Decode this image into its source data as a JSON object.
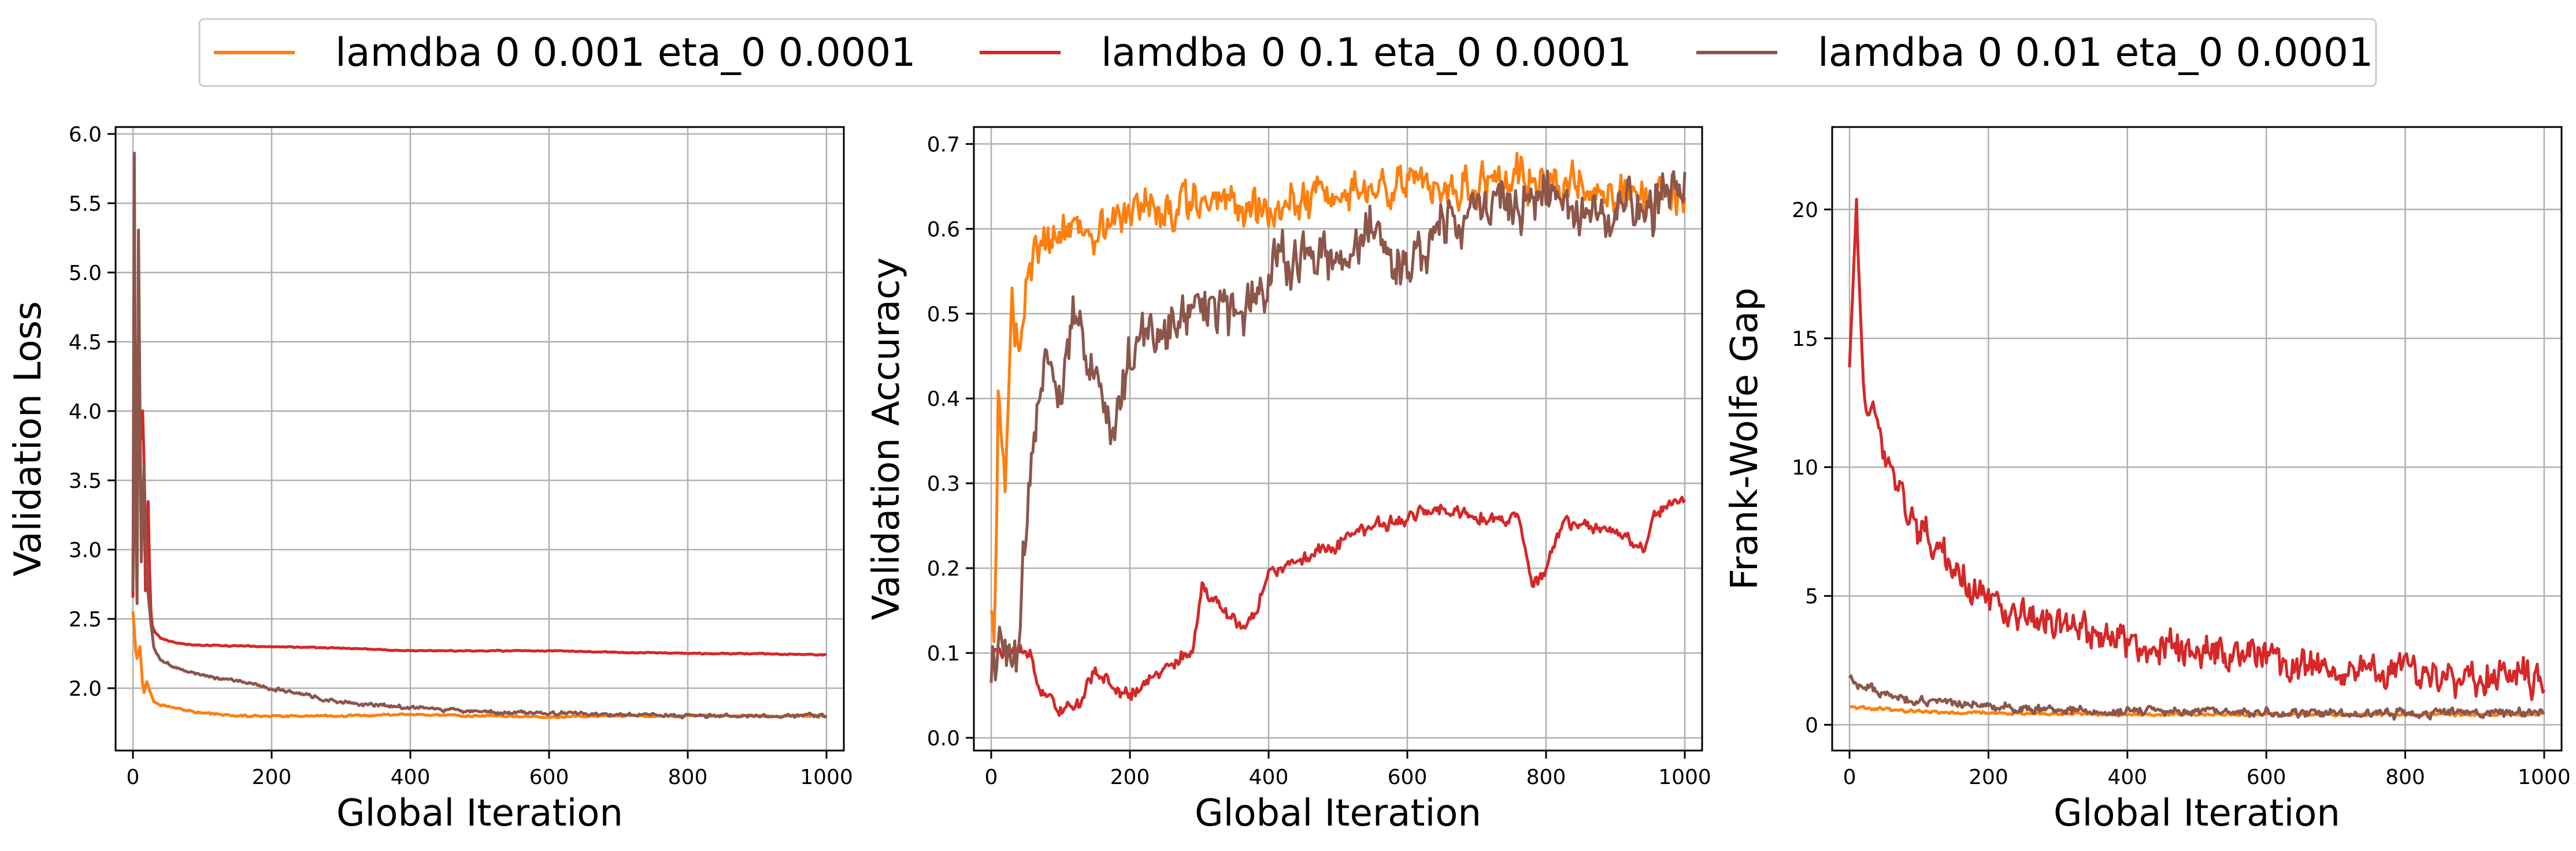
{
  "legend": {
    "entries": [
      {
        "label": "lamdba 0 0.001 eta_0 0.0001",
        "color": "#ff7f0e"
      },
      {
        "label": "lamdba 0 0.1 eta_0 0.0001",
        "color": "#d62728"
      },
      {
        "label": "lamdba 0 0.01 eta_0 0.0001",
        "color": "#8c564b"
      }
    ],
    "placement": "top-center"
  },
  "chart_data": [
    {
      "type": "line",
      "xlabel": "Global Iteration",
      "ylabel": "Validation Loss",
      "xlim": [
        -25,
        1025
      ],
      "ylim": [
        1.55,
        6.05
      ],
      "xticks": [
        0,
        200,
        400,
        600,
        800,
        1000
      ],
      "yticks": [
        2.0,
        2.5,
        3.0,
        3.5,
        4.0,
        4.5,
        5.0,
        5.5,
        6.0
      ],
      "ytick_labels": [
        "2.0",
        "2.5",
        "3.0",
        "3.5",
        "4.0",
        "4.5",
        "5.0",
        "5.5",
        "6.0"
      ],
      "grid": true,
      "series": [
        {
          "name": "lamdba 0 0.001 eta_0 0.0001",
          "color": "#ff7f0e",
          "noise": 0.01,
          "x": [
            0,
            5,
            10,
            15,
            20,
            30,
            40,
            60,
            80,
            100,
            150,
            200,
            300,
            400,
            500,
            600,
            700,
            800,
            900,
            1000
          ],
          "y": [
            2.55,
            2.2,
            2.3,
            1.95,
            2.05,
            1.9,
            1.88,
            1.86,
            1.84,
            1.82,
            1.8,
            1.8,
            1.8,
            1.81,
            1.8,
            1.79,
            1.8,
            1.8,
            1.8,
            1.8
          ]
        },
        {
          "name": "lamdba 0 0.1 eta_0 0.0001",
          "color": "#d62728",
          "noise": 0.006,
          "x": [
            0,
            3,
            6,
            8,
            12,
            15,
            18,
            22,
            25,
            28,
            32,
            40,
            50,
            70,
            100,
            200,
            300,
            400,
            500,
            600,
            700,
            800,
            900,
            1000
          ],
          "y": [
            2.65,
            5.2,
            3.0,
            4.2,
            3.8,
            4.1,
            2.7,
            3.35,
            2.6,
            2.45,
            2.4,
            2.36,
            2.34,
            2.32,
            2.31,
            2.3,
            2.29,
            2.27,
            2.27,
            2.27,
            2.26,
            2.25,
            2.25,
            2.24
          ]
        },
        {
          "name": "lamdba 0 0.01 eta_0 0.0001",
          "color": "#8c564b",
          "noise": 0.02,
          "x": [
            0,
            2,
            4,
            6,
            8,
            12,
            16,
            20,
            25,
            30,
            40,
            60,
            80,
            100,
            150,
            200,
            250,
            300,
            400,
            500,
            600,
            700,
            800,
            900,
            1000
          ],
          "y": [
            2.7,
            5.85,
            3.2,
            2.6,
            5.3,
            2.9,
            3.6,
            2.8,
            2.5,
            2.3,
            2.2,
            2.15,
            2.12,
            2.1,
            2.05,
            2.0,
            1.95,
            1.9,
            1.86,
            1.83,
            1.82,
            1.81,
            1.8,
            1.8,
            1.8
          ]
        }
      ]
    },
    {
      "type": "line",
      "xlabel": "Global Iteration",
      "ylabel": "Validation Accuracy",
      "xlim": [
        -25,
        1025
      ],
      "ylim": [
        -0.015,
        0.72
      ],
      "xticks": [
        0,
        200,
        400,
        600,
        800,
        1000
      ],
      "yticks": [
        0.0,
        0.1,
        0.2,
        0.3,
        0.4,
        0.5,
        0.6,
        0.7
      ],
      "ytick_labels": [
        "0.0",
        "0.1",
        "0.2",
        "0.3",
        "0.4",
        "0.5",
        "0.6",
        "0.7"
      ],
      "grid": true,
      "series": [
        {
          "name": "lamdba 0 0.001 eta_0 0.0001",
          "color": "#ff7f0e",
          "noise": 0.035,
          "x": [
            0,
            5,
            10,
            20,
            30,
            40,
            50,
            70,
            100,
            150,
            200,
            300,
            400,
            500,
            600,
            700,
            800,
            900,
            1000
          ],
          "y": [
            0.15,
            0.12,
            0.4,
            0.3,
            0.5,
            0.45,
            0.55,
            0.58,
            0.6,
            0.6,
            0.62,
            0.63,
            0.62,
            0.64,
            0.66,
            0.65,
            0.66,
            0.64,
            0.64
          ]
        },
        {
          "name": "lamdba 0 0.1 eta_0 0.0001",
          "color": "#d62728",
          "noise": 0.012,
          "x": [
            0,
            60,
            65,
            100,
            125,
            150,
            200,
            250,
            290,
            305,
            330,
            360,
            380,
            400,
            450,
            500,
            550,
            600,
            650,
            700,
            760,
            780,
            800,
            820,
            900,
            940,
            960,
            1000
          ],
          "y": [
            0.1,
            0.1,
            0.06,
            0.03,
            0.04,
            0.08,
            0.05,
            0.08,
            0.1,
            0.18,
            0.15,
            0.13,
            0.14,
            0.2,
            0.21,
            0.23,
            0.25,
            0.26,
            0.27,
            0.26,
            0.26,
            0.18,
            0.19,
            0.25,
            0.25,
            0.22,
            0.27,
            0.28
          ]
        },
        {
          "name": "lamdba 0 0.01 eta_0 0.0001",
          "color": "#8c564b",
          "noise": 0.045,
          "x": [
            0,
            5,
            10,
            40,
            45,
            60,
            80,
            100,
            120,
            150,
            170,
            200,
            250,
            300,
            350,
            400,
            450,
            500,
            550,
            600,
            650,
            700,
            750,
            800,
            850,
            900,
            950,
            1000
          ],
          "y": [
            0.07,
            0.1,
            0.1,
            0.1,
            0.2,
            0.35,
            0.48,
            0.4,
            0.5,
            0.42,
            0.36,
            0.45,
            0.48,
            0.52,
            0.5,
            0.55,
            0.56,
            0.57,
            0.6,
            0.55,
            0.6,
            0.62,
            0.63,
            0.64,
            0.63,
            0.62,
            0.63,
            0.65
          ]
        }
      ]
    },
    {
      "type": "line",
      "xlabel": "Global Iteration",
      "ylabel": "Frank-Wolfe Gap",
      "xlim": [
        -25,
        1025
      ],
      "ylim": [
        -1.0,
        23.2
      ],
      "xticks": [
        0,
        200,
        400,
        600,
        800,
        1000
      ],
      "yticks": [
        0,
        5,
        10,
        15,
        20
      ],
      "ytick_labels": [
        "0",
        "5",
        "10",
        "15",
        "20"
      ],
      "grid": true,
      "series": [
        {
          "name": "lamdba 0 0.001 eta_0 0.0001",
          "color": "#ff7f0e",
          "noise": 0.08,
          "x": [
            0,
            50,
            100,
            200,
            400,
            600,
            800,
            1000
          ],
          "y": [
            0.7,
            0.6,
            0.5,
            0.45,
            0.4,
            0.4,
            0.4,
            0.4
          ]
        },
        {
          "name": "lamdba 0 0.1 eta_0 0.0001",
          "color": "#d62728",
          "noise": 1.0,
          "x": [
            0,
            5,
            10,
            15,
            20,
            30,
            50,
            70,
            100,
            150,
            200,
            250,
            300,
            400,
            500,
            600,
            700,
            800,
            900,
            1000
          ],
          "y": [
            14,
            17,
            20,
            16,
            13,
            12,
            10.5,
            9,
            7.5,
            6,
            5,
            4.3,
            4,
            3.2,
            2.8,
            2.5,
            2.2,
            2.0,
            1.9,
            1.8
          ]
        },
        {
          "name": "lamdba 0 0.01 eta_0 0.0001",
          "color": "#8c564b",
          "noise": 0.25,
          "x": [
            0,
            20,
            50,
            100,
            200,
            300,
            400,
            600,
            800,
            1000
          ],
          "y": [
            1.8,
            1.5,
            1.2,
            0.9,
            0.7,
            0.55,
            0.5,
            0.45,
            0.45,
            0.45
          ]
        }
      ]
    }
  ]
}
